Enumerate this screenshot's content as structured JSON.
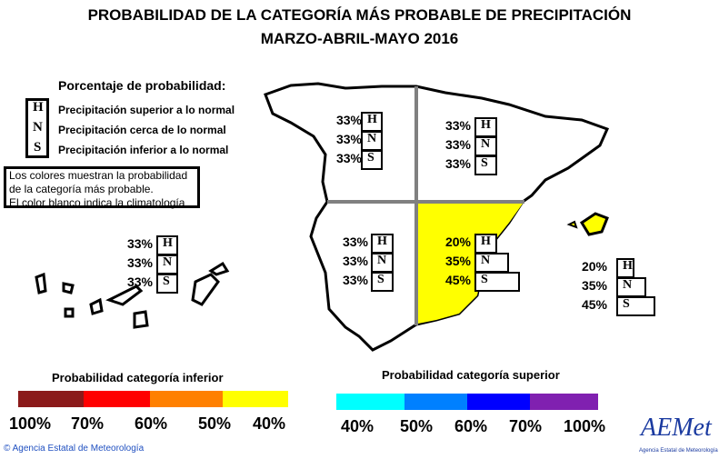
{
  "title": {
    "line1": "PROBABILIDAD DE LA CATEGORÍA MÁS PROBABLE DE PRECIPITACIÓN",
    "line2": "MARZO-ABRIL-MAYO 2016"
  },
  "legend": {
    "heading": "Porcentaje de probabilidad:",
    "items": [
      {
        "letter": "H",
        "label": "Precipitación superior a lo normal"
      },
      {
        "letter": "N",
        "label": "Precipitación cerca de lo normal"
      },
      {
        "letter": "S",
        "label": "Precipitación inferior a lo normal"
      }
    ],
    "note": [
      "Los colores muestran la probabilidad",
      "de la categoría más probable.",
      "El color blanco indica la climatología"
    ]
  },
  "regions": [
    {
      "id": "northwest",
      "H": "33%",
      "N": "33%",
      "S": "33%",
      "fill": "#ffffff"
    },
    {
      "id": "northeast",
      "H": "33%",
      "N": "33%",
      "S": "33%",
      "fill": "#ffffff"
    },
    {
      "id": "canarias",
      "H": "33%",
      "N": "33%",
      "S": "33%",
      "fill": "#ffffff"
    },
    {
      "id": "southwest",
      "H": "33%",
      "N": "33%",
      "S": "33%",
      "fill": "#ffffff"
    },
    {
      "id": "southeast",
      "H": "20%",
      "N": "35%",
      "S": "45%",
      "fill": "#ffff00"
    },
    {
      "id": "baleares",
      "H": "20%",
      "N": "35%",
      "S": "45%",
      "fill": "#ffff00"
    }
  ],
  "scale_inferior": {
    "title": "Probabilidad categoría inferior",
    "colors": [
      "#8b1a1a",
      "#ff0000",
      "#ff8000",
      "#ffff00"
    ],
    "ticks": [
      "100%",
      "70%",
      "60%",
      "50%",
      "40%"
    ]
  },
  "scale_superior": {
    "title": "Probabilidad categoría superior",
    "colors": [
      "#00ffff",
      "#0080ff",
      "#0000ff",
      "#8020b0"
    ],
    "ticks": [
      "40%",
      "50%",
      "60%",
      "70%",
      "100%"
    ]
  },
  "footer": {
    "copyright": "Agencia Estatal de Meteorología",
    "logo_text": "AEMet",
    "logo_sub": "Agencia Estatal de Meteorología"
  }
}
